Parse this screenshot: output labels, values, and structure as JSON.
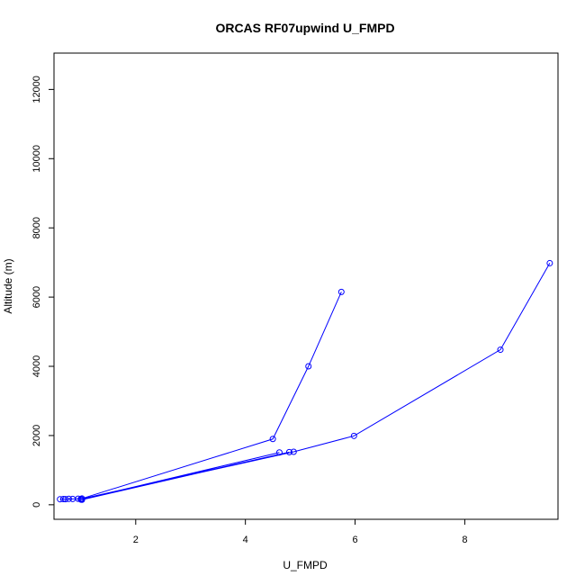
{
  "chart_data": {
    "type": "line",
    "title": "ORCAS RF07upwind U_FMPD",
    "xlabel": "U_FMPD",
    "ylabel": "Altitude (m)",
    "xlim": [
      0.51,
      9.7
    ],
    "ylim": [
      -420,
      13050
    ],
    "x_ticks": [
      2,
      4,
      6,
      8
    ],
    "y_ticks": [
      0,
      2000,
      4000,
      6000,
      8000,
      10000,
      12000
    ],
    "grid": false,
    "legend": "none",
    "series": [
      {
        "color": "#0000ff",
        "marker": "open-circle",
        "points": [
          [
            0.62,
            160
          ],
          [
            0.68,
            165
          ],
          [
            0.72,
            162
          ],
          [
            0.78,
            170
          ],
          [
            0.85,
            168
          ],
          [
            0.95,
            175
          ],
          [
            1.02,
            180
          ],
          [
            4.5,
            1900
          ],
          [
            5.15,
            4000
          ],
          [
            5.75,
            6150
          ]
        ]
      },
      {
        "color": "#0000ff",
        "marker": "open-circle",
        "points": [
          [
            1.0,
            150
          ],
          [
            4.62,
            1510
          ],
          [
            1.02,
            145
          ],
          [
            4.8,
            1520
          ],
          [
            1.0,
            165
          ],
          [
            4.88,
            1530
          ],
          [
            5.98,
            1990
          ],
          [
            8.65,
            4480
          ],
          [
            9.55,
            6980
          ]
        ]
      }
    ]
  }
}
